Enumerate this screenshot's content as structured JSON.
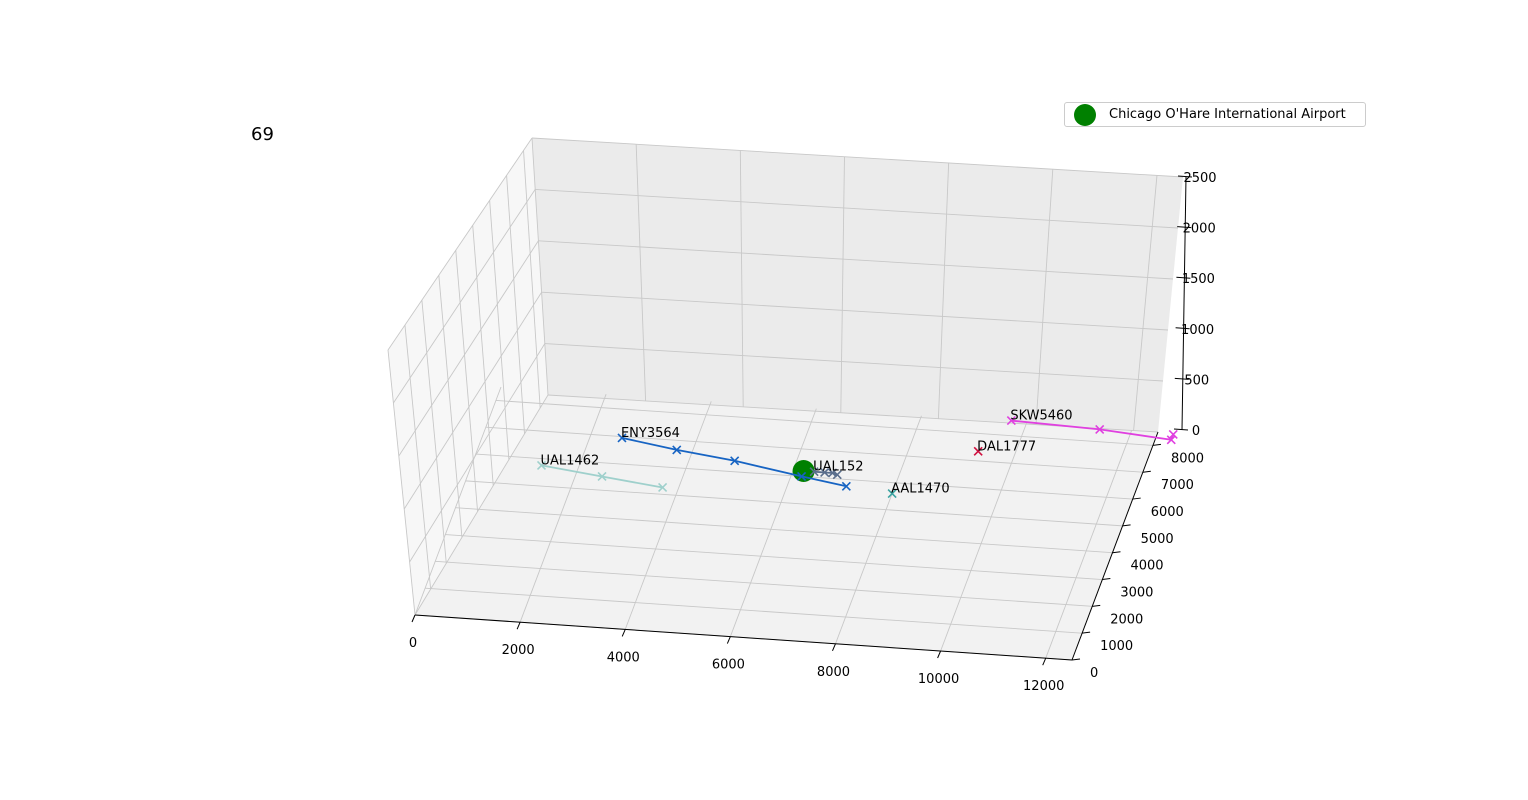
{
  "frame": {
    "label": "69"
  },
  "legend": {
    "airport_label": "Chicago O'Hare International Airport",
    "airport_color": "#008000"
  },
  "chart_data": {
    "type": "scatter",
    "projection": "3d",
    "grid": true,
    "legend_placement": "top-right",
    "xlim": [
      0,
      12500
    ],
    "ylim": [
      0,
      8500
    ],
    "zlim": [
      0,
      2500
    ],
    "x_ticks": [
      0,
      2000,
      4000,
      6000,
      8000,
      10000,
      12000
    ],
    "y_ticks": [
      0,
      1000,
      2000,
      3000,
      4000,
      5000,
      6000,
      7000,
      8000
    ],
    "z_ticks": [
      0,
      500,
      1000,
      1500,
      2000,
      2500
    ],
    "airport": {
      "name": "Chicago O'Hare International Airport",
      "x": 6200,
      "y": 6200,
      "z": 0,
      "color": "#008000"
    },
    "series": [
      {
        "name": "ENY3564",
        "color": "#1764c3",
        "points": [
          [
            2600,
            6950,
            0
          ],
          [
            3700,
            6650,
            0
          ],
          [
            4850,
            6400,
            0
          ],
          [
            6200,
            6000,
            0
          ],
          [
            7100,
            5750,
            0
          ]
        ]
      },
      {
        "name": "UAL152",
        "color": "#5a6e8c",
        "points": [
          [
            6400,
            6200,
            0
          ],
          [
            6600,
            6200,
            0
          ],
          [
            6750,
            6200,
            0
          ],
          [
            6850,
            6150,
            0
          ]
        ]
      },
      {
        "name": "UAL1462",
        "color": "#9fd0cc",
        "points": [
          [
            1300,
            5750,
            0
          ],
          [
            2500,
            5500,
            0
          ],
          [
            3700,
            5250,
            0
          ]
        ]
      },
      {
        "name": "AAL1470",
        "color": "#3aa3a0",
        "points": [
          [
            8000,
            5600,
            0
          ]
        ]
      },
      {
        "name": "DAL1777",
        "color": "#d0103f",
        "points": [
          [
            9300,
            7350,
            0
          ]
        ]
      },
      {
        "name": "SKW5460",
        "color": "#e040e0",
        "points": [
          [
            9700,
            8550,
            0
          ],
          [
            11400,
            8450,
            0
          ],
          [
            12800,
            8250,
            0
          ],
          [
            12800,
            8450,
            0
          ]
        ]
      }
    ]
  }
}
